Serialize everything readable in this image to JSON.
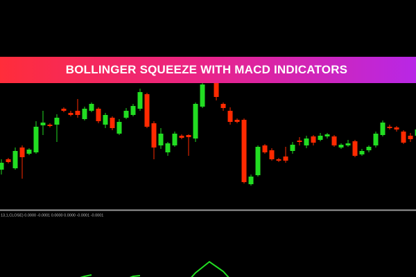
{
  "chart_data": [
    {
      "type": "candlestick",
      "title": "BOLLINGER SQUEEZE WITH MACD INDICATORS",
      "up_color": "#22dd22",
      "down_color": "#ff2a00",
      "xlim": [
        -0.2,
        59.8
      ],
      "ylim": [
        100,
        400
      ],
      "x": [
        0,
        1,
        2,
        3,
        4,
        5,
        6,
        7,
        8,
        9,
        10,
        11,
        12,
        13,
        14,
        15,
        16,
        17,
        18,
        19,
        20,
        21,
        22,
        23,
        24,
        25,
        26,
        27,
        28,
        29,
        31,
        32,
        33,
        34,
        35,
        36,
        37,
        38,
        39,
        40,
        41,
        42,
        43,
        44,
        45,
        46,
        47,
        48,
        49,
        50,
        51,
        52,
        53,
        54,
        55,
        56,
        57,
        58,
        59,
        60
      ],
      "open": [
        155,
        170,
        157,
        187,
        178,
        180,
        219,
        220,
        220,
        243,
        237,
        240,
        228,
        240,
        243,
        220,
        230,
        207,
        230,
        234,
        243,
        264,
        222,
        190,
        180,
        190,
        204,
        205,
        200,
        246,
        280,
        250,
        240,
        227,
        227,
        134,
        147,
        190,
        183,
        170,
        174,
        182,
        197,
        190,
        203,
        198,
        203,
        203,
        187,
        190,
        196,
        177,
        183,
        190,
        205,
        217,
        216,
        210,
        204,
        204
      ],
      "high": [
        170,
        172,
        187,
        190,
        186,
        225,
        240,
        222,
        235,
        245,
        240,
        257,
        246,
        252,
        245,
        237,
        232,
        228,
        244,
        250,
        272,
        266,
        225,
        215,
        195,
        210,
        206,
        206,
        252,
        290,
        290,
        252,
        245,
        229,
        229,
        148,
        190,
        192,
        186,
        172,
        188,
        195,
        202,
        204,
        205,
        208,
        208,
        205,
        193,
        198,
        198,
        185,
        190,
        210,
        226,
        220,
        218,
        212,
        208,
        216
      ],
      "low": [
        148,
        164,
        155,
        142,
        176,
        178,
        205,
        216,
        195,
        238,
        232,
        230,
        226,
        238,
        222,
        215,
        212,
        205,
        228,
        232,
        240,
        215,
        170,
        185,
        175,
        188,
        199,
        175,
        195,
        244,
        255,
        240,
        220,
        222,
        135,
        132,
        145,
        178,
        168,
        166,
        165,
        178,
        190,
        186,
        190,
        196,
        200,
        188,
        185,
        188,
        173,
        175,
        180,
        187,
        203,
        213,
        210,
        192,
        195,
        200
      ],
      "close": [
        165,
        166,
        182,
        173,
        184,
        217,
        223,
        218,
        230,
        240,
        234,
        234,
        243,
        250,
        225,
        234,
        215,
        224,
        240,
        247,
        267,
        217,
        187,
        207,
        193,
        207,
        201,
        202,
        250,
        278,
        260,
        244,
        224,
        224,
        137,
        145,
        188,
        180,
        170,
        168,
        168,
        191,
        195,
        200,
        194,
        204,
        206,
        190,
        191,
        193,
        175,
        182,
        188,
        207,
        223,
        215,
        213,
        194,
        199,
        213
      ]
    },
    {
      "type": "line",
      "label": "13,1,CLOSE) 0.0000 -0.0001 0.0000 0.0000 -0.0001 -0.0001",
      "color": "#22dd22",
      "xlim": [
        -0.2,
        59.8
      ],
      "ylim": [
        0,
        95
      ],
      "x": [
        11,
        12,
        13,
        null,
        18,
        19,
        20,
        null,
        27,
        28,
        29,
        30,
        31,
        32,
        33
      ],
      "values": [
        -2,
        1,
        3,
        null,
        -3,
        1,
        2,
        null,
        -5,
        6,
        14,
        22,
        15,
        8,
        -3
      ]
    }
  ]
}
